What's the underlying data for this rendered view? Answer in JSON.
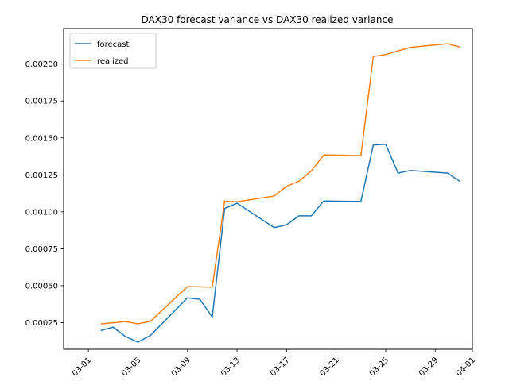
{
  "chart_data": {
    "type": "line",
    "title": "DAX30 forecast variance vs DAX30 realized variance",
    "xlabel": "",
    "ylabel": "",
    "x_axis_type": "date",
    "year": 2020,
    "xlim": [
      "2020-02-28",
      "2020-04-01"
    ],
    "ylim": [
      7e-05,
      0.00224
    ],
    "x_ticks": [
      "2020-03-01",
      "2020-03-05",
      "2020-03-09",
      "2020-03-13",
      "2020-03-17",
      "2020-03-21",
      "2020-03-25",
      "2020-03-29",
      "2020-04-01"
    ],
    "x_tick_labels": [
      "03-01",
      "03-05",
      "03-09",
      "03-13",
      "03-17",
      "03-21",
      "03-25",
      "03-29",
      "04-01"
    ],
    "y_ticks": [
      0.00025,
      0.0005,
      0.00075,
      0.001,
      0.00125,
      0.0015,
      0.00175,
      0.002
    ],
    "y_tick_labels": [
      "0.00025",
      "0.00050",
      "0.00075",
      "0.00100",
      "0.00125",
      "0.00150",
      "0.00175",
      "0.00200"
    ],
    "grid": false,
    "legend_position": "top-left",
    "series": [
      {
        "name": "forecast",
        "color": "#1f77b4",
        "points": [
          [
            "2020-03-02",
            0.000197
          ],
          [
            "2020-03-03",
            0.000219
          ],
          [
            "2020-03-04",
            0.000156
          ],
          [
            "2020-03-05",
            0.000118
          ],
          [
            "2020-03-06",
            0.000163
          ],
          [
            "2020-03-09",
            0.000418
          ],
          [
            "2020-03-10",
            0.000408
          ],
          [
            "2020-03-11",
            0.000288
          ],
          [
            "2020-03-12",
            0.001023
          ],
          [
            "2020-03-13",
            0.001058
          ],
          [
            "2020-03-16",
            0.000893
          ],
          [
            "2020-03-17",
            0.000912
          ],
          [
            "2020-03-18",
            0.000973
          ],
          [
            "2020-03-19",
            0.000973
          ],
          [
            "2020-03-20",
            0.001073
          ],
          [
            "2020-03-23",
            0.00107
          ],
          [
            "2020-03-24",
            0.001452
          ],
          [
            "2020-03-25",
            0.001457
          ],
          [
            "2020-03-26",
            0.001262
          ],
          [
            "2020-03-27",
            0.00128
          ],
          [
            "2020-03-30",
            0.001262
          ],
          [
            "2020-03-31",
            0.001205
          ]
        ]
      },
      {
        "name": "realized",
        "color": "#ff7f0e",
        "points": [
          [
            "2020-03-02",
            0.000242
          ],
          [
            "2020-03-03",
            0.000249
          ],
          [
            "2020-03-04",
            0.000257
          ],
          [
            "2020-03-05",
            0.000242
          ],
          [
            "2020-03-06",
            0.000259
          ],
          [
            "2020-03-09",
            0.000494
          ],
          [
            "2020-03-10",
            0.000492
          ],
          [
            "2020-03-11",
            0.00049
          ],
          [
            "2020-03-12",
            0.001072
          ],
          [
            "2020-03-13",
            0.001068
          ],
          [
            "2020-03-16",
            0.001107
          ],
          [
            "2020-03-17",
            0.001173
          ],
          [
            "2020-03-18",
            0.001207
          ],
          [
            "2020-03-19",
            0.001277
          ],
          [
            "2020-03-20",
            0.001385
          ],
          [
            "2020-03-23",
            0.00138
          ],
          [
            "2020-03-24",
            0.002051
          ],
          [
            "2020-03-25",
            0.002064
          ],
          [
            "2020-03-26",
            0.002089
          ],
          [
            "2020-03-27",
            0.002113
          ],
          [
            "2020-03-30",
            0.002137
          ],
          [
            "2020-03-31",
            0.002115
          ]
        ]
      }
    ]
  }
}
